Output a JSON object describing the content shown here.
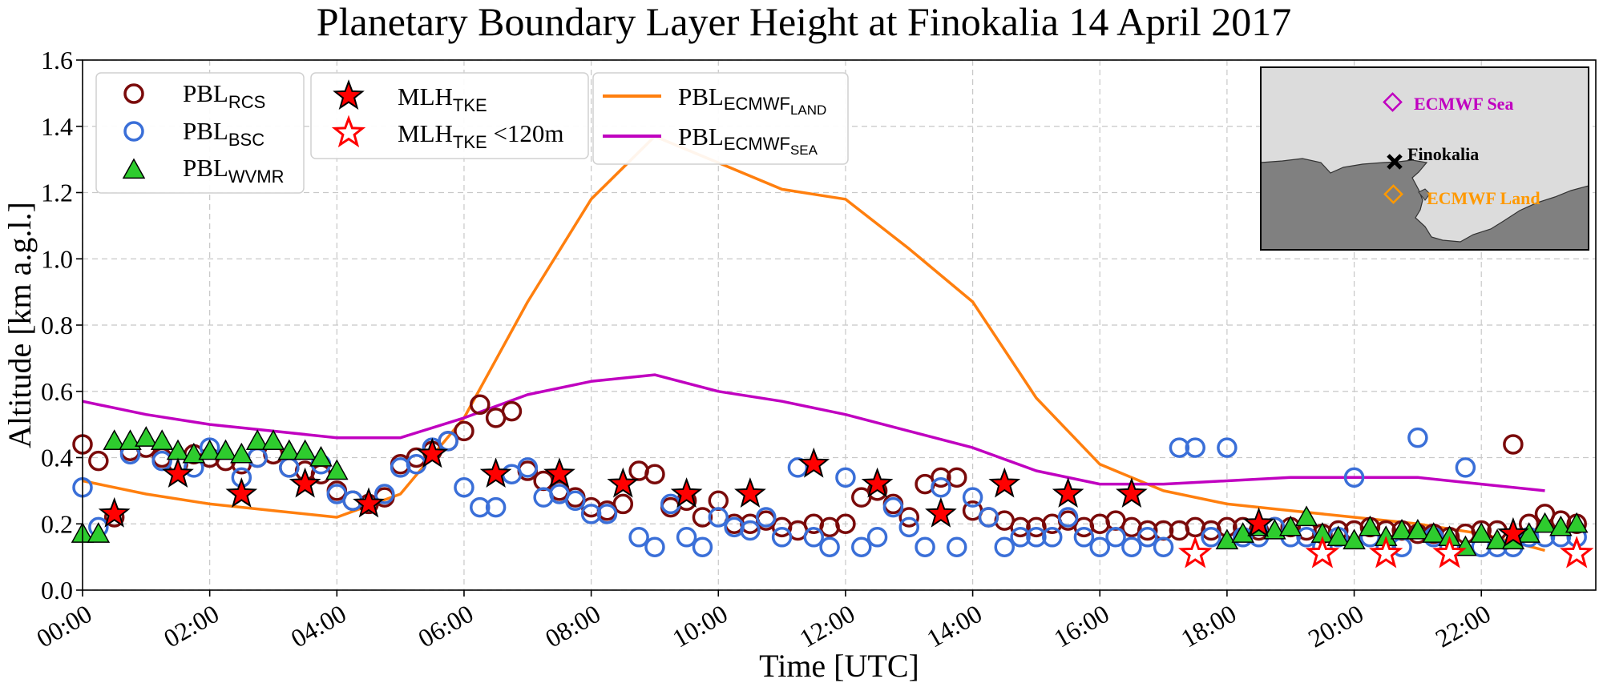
{
  "chart_data": {
    "type": "scatter",
    "title": "Planetary Boundary Layer Height at Finokalia 14 April 2017",
    "xlabel": "Time [UTC]",
    "ylabel": "Altitude [km a.g.l.]",
    "xlim": [
      0,
      23.8
    ],
    "ylim": [
      0,
      1.6
    ],
    "grid": true,
    "x_ticks": [
      0,
      2,
      4,
      6,
      8,
      10,
      12,
      14,
      16,
      18,
      20,
      22
    ],
    "x_tick_labels": [
      "00:00",
      "02:00",
      "04:00",
      "06:00",
      "08:00",
      "10:00",
      "12:00",
      "14:00",
      "16:00",
      "18:00",
      "20:00",
      "22:00"
    ],
    "y_ticks": [
      0.0,
      0.2,
      0.4,
      0.6,
      0.8,
      1.0,
      1.2,
      1.4,
      1.6
    ],
    "y_tick_labels": [
      "0.0",
      "0.2",
      "0.4",
      "0.6",
      "0.8",
      "1.0",
      "1.2",
      "1.4",
      "1.6"
    ],
    "series": [
      {
        "name": "PBL_RCS",
        "label_main": "PBL",
        "label_sub": "RCS",
        "marker": "circle-open",
        "color": "#7a0a0a",
        "x": [
          0.0,
          0.25,
          0.5,
          0.75,
          1.0,
          1.25,
          1.5,
          1.75,
          2.0,
          2.25,
          2.5,
          2.75,
          3.0,
          3.25,
          3.5,
          3.75,
          4.0,
          4.25,
          4.5,
          4.75,
          5.0,
          5.25,
          5.5,
          5.75,
          6.0,
          6.25,
          6.5,
          6.75,
          7.0,
          7.25,
          7.5,
          7.75,
          8.0,
          8.25,
          8.5,
          8.75,
          9.0,
          9.25,
          9.5,
          9.75,
          10.0,
          10.25,
          10.5,
          10.75,
          11.0,
          11.25,
          11.5,
          11.75,
          12.0,
          12.25,
          12.5,
          12.75,
          13.0,
          13.25,
          13.5,
          13.75,
          14.0,
          14.25,
          14.5,
          14.75,
          15.0,
          15.25,
          15.5,
          15.75,
          16.0,
          16.25,
          16.5,
          16.75,
          17.0,
          17.25,
          17.5,
          17.75,
          18.0,
          18.25,
          18.5,
          18.75,
          19.0,
          19.25,
          19.5,
          19.75,
          20.0,
          20.25,
          20.5,
          20.75,
          21.0,
          21.25,
          21.5,
          21.75,
          22.0,
          22.25,
          22.5,
          22.75,
          23.0,
          23.25,
          23.5
        ],
        "y": [
          0.44,
          0.39,
          0.22,
          0.42,
          0.43,
          0.4,
          0.38,
          0.41,
          0.4,
          0.39,
          0.38,
          0.4,
          0.41,
          0.37,
          0.36,
          0.35,
          0.3,
          0.27,
          0.26,
          0.28,
          0.38,
          0.4,
          0.42,
          0.45,
          0.48,
          0.56,
          0.52,
          0.54,
          0.36,
          0.33,
          0.3,
          0.28,
          0.25,
          0.24,
          0.26,
          0.36,
          0.35,
          0.25,
          0.27,
          0.22,
          0.27,
          0.2,
          0.2,
          0.21,
          0.19,
          0.18,
          0.2,
          0.19,
          0.2,
          0.28,
          0.3,
          0.26,
          0.22,
          0.32,
          0.34,
          0.34,
          0.24,
          0.22,
          0.21,
          0.19,
          0.19,
          0.2,
          0.21,
          0.19,
          0.2,
          0.21,
          0.19,
          0.18,
          0.18,
          0.18,
          0.19,
          0.18,
          0.19,
          0.19,
          0.18,
          0.19,
          0.19,
          0.18,
          0.17,
          0.18,
          0.18,
          0.19,
          0.18,
          0.18,
          0.17,
          0.17,
          0.16,
          0.17,
          0.18,
          0.18,
          0.44,
          0.2,
          0.23,
          0.21,
          0.2
        ]
      },
      {
        "name": "PBL_BSC",
        "label_main": "PBL",
        "label_sub": "BSC",
        "marker": "circle-open",
        "color": "#3a6fd8",
        "x": [
          0.0,
          0.25,
          0.75,
          1.25,
          1.75,
          2.0,
          2.5,
          2.75,
          3.25,
          3.75,
          4.0,
          4.25,
          4.75,
          5.0,
          5.25,
          5.5,
          5.75,
          6.0,
          6.25,
          6.5,
          6.75,
          7.0,
          7.25,
          7.5,
          7.75,
          8.0,
          8.25,
          8.75,
          9.0,
          9.25,
          9.5,
          9.75,
          10.0,
          10.25,
          10.5,
          10.75,
          11.0,
          11.25,
          11.5,
          11.75,
          12.0,
          12.25,
          12.5,
          12.75,
          13.0,
          13.25,
          13.5,
          13.75,
          14.0,
          14.25,
          14.5,
          14.75,
          15.0,
          15.25,
          15.5,
          15.75,
          16.0,
          16.25,
          16.5,
          16.75,
          17.0,
          17.25,
          17.5,
          17.75,
          18.0,
          18.25,
          18.5,
          18.75,
          19.0,
          19.25,
          19.5,
          19.75,
          20.0,
          20.25,
          20.5,
          20.75,
          21.0,
          21.25,
          21.5,
          21.75,
          22.0,
          22.25,
          22.5,
          22.75,
          23.0,
          23.25,
          23.5
        ],
        "y": [
          0.31,
          0.19,
          0.41,
          0.39,
          0.37,
          0.43,
          0.34,
          0.4,
          0.37,
          0.38,
          0.29,
          0.27,
          0.29,
          0.37,
          0.38,
          0.43,
          0.45,
          0.31,
          0.25,
          0.25,
          0.35,
          0.37,
          0.28,
          0.29,
          0.27,
          0.23,
          0.23,
          0.16,
          0.13,
          0.26,
          0.16,
          0.13,
          0.22,
          0.19,
          0.18,
          0.22,
          0.16,
          0.37,
          0.16,
          0.13,
          0.34,
          0.13,
          0.16,
          0.25,
          0.19,
          0.13,
          0.31,
          0.13,
          0.28,
          0.22,
          0.13,
          0.16,
          0.16,
          0.16,
          0.22,
          0.16,
          0.13,
          0.16,
          0.13,
          0.16,
          0.13,
          0.43,
          0.43,
          0.16,
          0.43,
          0.16,
          0.16,
          0.19,
          0.16,
          0.16,
          0.13,
          0.16,
          0.34,
          0.16,
          0.13,
          0.13,
          0.46,
          0.16,
          0.13,
          0.37,
          0.13,
          0.13,
          0.13,
          0.16,
          0.16,
          0.16,
          0.16
        ]
      },
      {
        "name": "PBL_WVMR",
        "label_main": "PBL",
        "label_sub": "WVMR",
        "marker": "triangle",
        "color": "#2ecc2e",
        "x": [
          0.0,
          0.25,
          0.5,
          0.75,
          1.0,
          1.25,
          1.5,
          1.75,
          2.0,
          2.25,
          2.5,
          2.75,
          3.0,
          3.25,
          3.5,
          3.75,
          4.0,
          18.0,
          18.25,
          18.5,
          18.75,
          19.0,
          19.25,
          19.5,
          19.75,
          20.0,
          20.25,
          20.5,
          20.75,
          21.0,
          21.25,
          21.5,
          21.75,
          22.0,
          22.25,
          22.5,
          22.75,
          23.0,
          23.25,
          23.5
        ],
        "y": [
          0.17,
          0.17,
          0.45,
          0.45,
          0.46,
          0.45,
          0.42,
          0.41,
          0.42,
          0.42,
          0.41,
          0.45,
          0.45,
          0.42,
          0.42,
          0.4,
          0.36,
          0.15,
          0.17,
          0.19,
          0.18,
          0.19,
          0.22,
          0.17,
          0.16,
          0.15,
          0.19,
          0.16,
          0.18,
          0.18,
          0.17,
          0.16,
          0.13,
          0.17,
          0.15,
          0.15,
          0.17,
          0.2,
          0.19,
          0.2
        ]
      },
      {
        "name": "MLH_TKE",
        "label_main": "MLH",
        "label_sub": "TKE",
        "marker": "star-filled",
        "color": "#ff0000",
        "x": [
          0.5,
          1.5,
          2.5,
          3.5,
          4.5,
          5.5,
          6.5,
          7.5,
          8.5,
          9.5,
          10.5,
          11.5,
          12.5,
          13.5,
          14.5,
          15.5,
          16.5,
          18.5,
          22.5
        ],
        "y": [
          0.23,
          0.35,
          0.29,
          0.32,
          0.26,
          0.41,
          0.35,
          0.35,
          0.32,
          0.29,
          0.29,
          0.38,
          0.32,
          0.23,
          0.32,
          0.29,
          0.29,
          0.2,
          0.17
        ]
      },
      {
        "name": "MLH_TKE <120m",
        "label_main": "MLH",
        "label_sub": "TKE",
        "label_suffix": " <120m",
        "marker": "star-open",
        "color": "#ff0000",
        "x": [
          17.5,
          19.5,
          20.5,
          21.5,
          23.5
        ],
        "y": [
          0.11,
          0.11,
          0.11,
          0.11,
          0.11
        ]
      },
      {
        "name": "PBL_ECMWF_LAND",
        "label_main": "PBL",
        "label_sub": "ECMWF",
        "label_sub2": "LAND",
        "marker": "line",
        "color": "#ff7f0e",
        "x": [
          0,
          1,
          2,
          3,
          4,
          5,
          6,
          7,
          8,
          9,
          10,
          11,
          12,
          13,
          14,
          15,
          16,
          17,
          18,
          19,
          20,
          21,
          22,
          23
        ],
        "y": [
          0.33,
          0.29,
          0.26,
          0.24,
          0.22,
          0.29,
          0.52,
          0.87,
          1.18,
          1.37,
          1.29,
          1.21,
          1.18,
          1.03,
          0.87,
          0.58,
          0.38,
          0.3,
          0.26,
          0.24,
          0.22,
          0.2,
          0.17,
          0.12
        ]
      },
      {
        "name": "PBL_ECMWF_SEA",
        "label_main": "PBL",
        "label_sub": "ECMWF",
        "label_sub2": "SEA",
        "marker": "line",
        "color": "#c000c0",
        "x": [
          0,
          1,
          2,
          3,
          4,
          5,
          6,
          7,
          8,
          9,
          10,
          11,
          12,
          13,
          14,
          15,
          16,
          17,
          18,
          19,
          20,
          21,
          22,
          23
        ],
        "y": [
          0.57,
          0.53,
          0.5,
          0.48,
          0.46,
          0.46,
          0.52,
          0.59,
          0.63,
          0.65,
          0.6,
          0.57,
          0.53,
          0.48,
          0.43,
          0.36,
          0.32,
          0.32,
          0.33,
          0.34,
          0.34,
          0.34,
          0.32,
          0.3
        ]
      }
    ],
    "inset_map": {
      "labels": [
        {
          "text": "ECMWF Sea",
          "color": "#c000c0"
        },
        {
          "text": "Finokalia",
          "color": "#000000"
        },
        {
          "text": "ECMWF Land",
          "color": "#ff9900"
        }
      ]
    }
  }
}
